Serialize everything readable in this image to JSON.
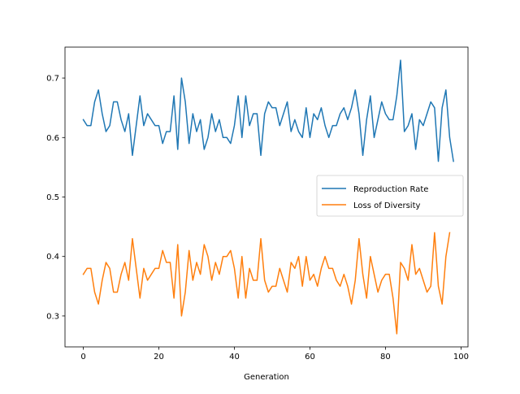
{
  "chart_data": {
    "type": "line",
    "title": "",
    "xlabel": "Generation",
    "ylabel": "",
    "xlim": [
      -4.85,
      101.85
    ],
    "ylim": [
      0.248,
      0.752
    ],
    "x_ticks": [
      0,
      20,
      40,
      60,
      80,
      100
    ],
    "y_ticks": [
      0.3,
      0.4,
      0.5,
      0.6,
      0.7
    ],
    "grid": false,
    "legend_position": "center-right",
    "series": [
      {
        "name": "Reproduction Rate",
        "color": "#1f77b4",
        "values": [
          0.63,
          0.62,
          0.62,
          0.66,
          0.68,
          0.64,
          0.61,
          0.62,
          0.66,
          0.66,
          0.63,
          0.61,
          0.64,
          0.57,
          0.62,
          0.67,
          0.62,
          0.64,
          0.63,
          0.62,
          0.62,
          0.59,
          0.61,
          0.61,
          0.67,
          0.58,
          0.7,
          0.66,
          0.59,
          0.64,
          0.61,
          0.63,
          0.58,
          0.6,
          0.64,
          0.61,
          0.63,
          0.6,
          0.6,
          0.59,
          0.62,
          0.67,
          0.6,
          0.67,
          0.62,
          0.64,
          0.64,
          0.57,
          0.64,
          0.66,
          0.65,
          0.65,
          0.62,
          0.64,
          0.66,
          0.61,
          0.63,
          0.61,
          0.6,
          0.65,
          0.6,
          0.64,
          0.63,
          0.65,
          0.62,
          0.6,
          0.62,
          0.62,
          0.64,
          0.65,
          0.63,
          0.65,
          0.68,
          0.64,
          0.57,
          0.63,
          0.67,
          0.6,
          0.63,
          0.66,
          0.64,
          0.63,
          0.63,
          0.67,
          0.73,
          0.61,
          0.62,
          0.64,
          0.58,
          0.63,
          0.62,
          0.64,
          0.66,
          0.65,
          0.56,
          0.65,
          0.68,
          0.6,
          0.56
        ]
      },
      {
        "name": "Loss of Diversity",
        "color": "#ff7f0e",
        "values": [
          0.37,
          0.38,
          0.38,
          0.34,
          0.32,
          0.36,
          0.39,
          0.38,
          0.34,
          0.34,
          0.37,
          0.39,
          0.36,
          0.43,
          0.38,
          0.33,
          0.38,
          0.36,
          0.37,
          0.38,
          0.38,
          0.41,
          0.39,
          0.39,
          0.33,
          0.42,
          0.3,
          0.34,
          0.41,
          0.36,
          0.39,
          0.37,
          0.42,
          0.4,
          0.36,
          0.39,
          0.37,
          0.4,
          0.4,
          0.41,
          0.38,
          0.33,
          0.4,
          0.33,
          0.38,
          0.36,
          0.36,
          0.43,
          0.36,
          0.34,
          0.35,
          0.35,
          0.38,
          0.36,
          0.34,
          0.39,
          0.38,
          0.4,
          0.35,
          0.4,
          0.36,
          0.37,
          0.35,
          0.38,
          0.4,
          0.38,
          0.38,
          0.36,
          0.35,
          0.37,
          0.35,
          0.32,
          0.36,
          0.43,
          0.37,
          0.33,
          0.4,
          0.37,
          0.34,
          0.36,
          0.37,
          0.37,
          0.33,
          0.27,
          0.39,
          0.38,
          0.36,
          0.42,
          0.37,
          0.38,
          0.36,
          0.34,
          0.35,
          0.44,
          0.35,
          0.32,
          0.4,
          0.44
        ]
      }
    ]
  }
}
